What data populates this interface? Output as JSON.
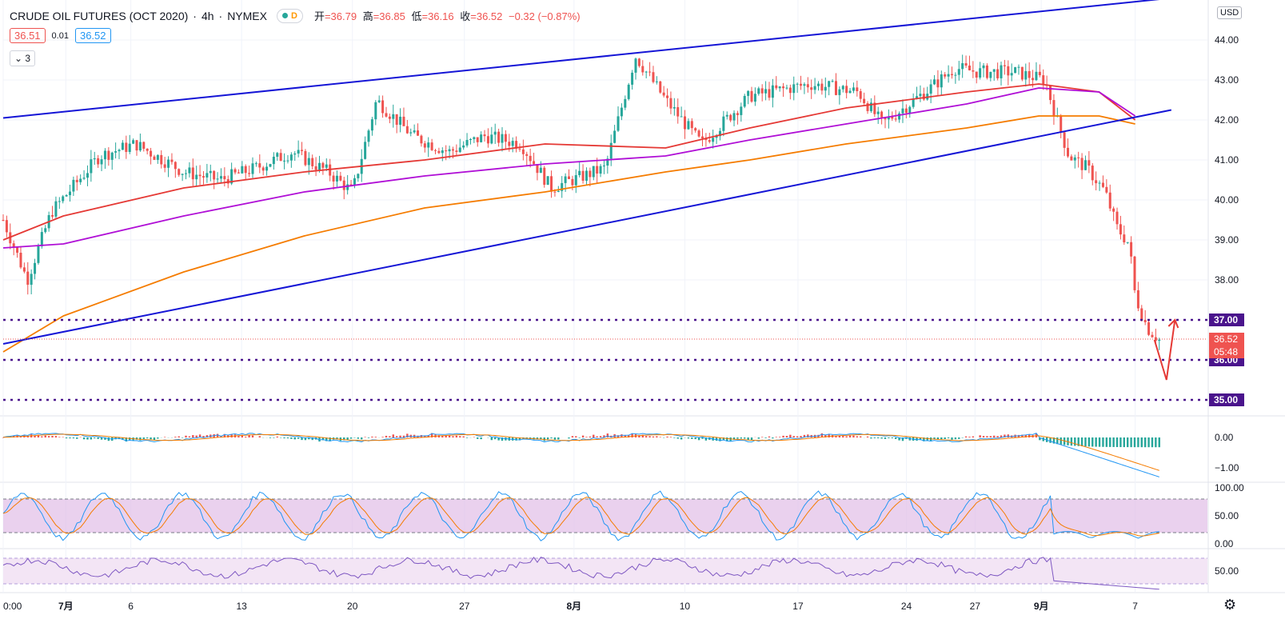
{
  "header": {
    "title": "CRUDE OIL FUTURES (OCT 2020)",
    "interval": "4h",
    "exchange": "NYMEX",
    "status_letter": "D",
    "ohlc": [
      {
        "k": "开",
        "v": "=36.79"
      },
      {
        "k": "高",
        "v": "=36.85"
      },
      {
        "k": "低",
        "v": "=36.16"
      },
      {
        "k": "收",
        "v": "=36.52"
      }
    ],
    "change": "−0.32 (−0.87%)"
  },
  "bidask": {
    "bid": "36.51",
    "spread": "0.01",
    "ask": "36.52"
  },
  "indicators_collapsed": "3",
  "currency": "USD",
  "colors": {
    "up": "#26a69a",
    "down": "#ef5350",
    "trend": "#1515d6",
    "level": "#4a148c",
    "ma_fast": "#e53935",
    "ma_mid": "#b00fd6",
    "ma_slow": "#f57c00"
  },
  "chart_data": {
    "type": "candlestick",
    "symbol": "CRUDE OIL FUTURES (OCT 2020)",
    "x_axis": {
      "ticks": [
        "0:00",
        "7月",
        "6",
        "13",
        "20",
        "27",
        "8月",
        "10",
        "17",
        "24",
        "27",
        "9月",
        "7"
      ]
    },
    "y_axis": {
      "ylim": [
        34.8,
        45.0
      ],
      "ticks": [
        "44.00",
        "43.00",
        "42.00",
        "41.00",
        "40.00",
        "39.00",
        "38.00"
      ]
    },
    "price_path": [
      [
        0,
        39.5
      ],
      [
        0.02,
        38.0
      ],
      [
        0.04,
        39.7
      ],
      [
        0.08,
        41.1
      ],
      [
        0.11,
        41.4
      ],
      [
        0.15,
        40.7
      ],
      [
        0.18,
        40.5
      ],
      [
        0.21,
        40.8
      ],
      [
        0.24,
        41.2
      ],
      [
        0.27,
        40.7
      ],
      [
        0.29,
        40.2
      ],
      [
        0.31,
        42.5
      ],
      [
        0.34,
        41.6
      ],
      [
        0.37,
        41.2
      ],
      [
        0.4,
        41.6
      ],
      [
        0.43,
        41.4
      ],
      [
        0.455,
        40.3
      ],
      [
        0.5,
        40.8
      ],
      [
        0.525,
        43.6
      ],
      [
        0.55,
        42.5
      ],
      [
        0.58,
        41.4
      ],
      [
        0.62,
        42.6
      ],
      [
        0.67,
        42.9
      ],
      [
        0.71,
        42.7
      ],
      [
        0.73,
        41.9
      ],
      [
        0.77,
        42.8
      ],
      [
        0.79,
        43.3
      ],
      [
        0.81,
        43.2
      ],
      [
        0.84,
        43.2
      ],
      [
        0.865,
        43.0
      ],
      [
        0.875,
        42.0
      ],
      [
        0.885,
        41.1
      ],
      [
        0.9,
        40.8
      ],
      [
        0.915,
        40.2
      ],
      [
        0.925,
        39.3
      ],
      [
        0.935,
        38.9
      ],
      [
        0.94,
        37.6
      ],
      [
        0.95,
        36.8
      ],
      [
        0.96,
        36.5
      ]
    ],
    "moving_averages": [
      {
        "name": "MA fast",
        "color": "#e53935",
        "points": [
          [
            0,
            39.0
          ],
          [
            0.05,
            39.6
          ],
          [
            0.15,
            40.3
          ],
          [
            0.25,
            40.7
          ],
          [
            0.35,
            41.0
          ],
          [
            0.45,
            41.4
          ],
          [
            0.55,
            41.3
          ],
          [
            0.62,
            41.8
          ],
          [
            0.7,
            42.3
          ],
          [
            0.8,
            42.7
          ],
          [
            0.86,
            42.9
          ],
          [
            0.91,
            42.7
          ],
          [
            0.94,
            42.0
          ]
        ]
      },
      {
        "name": "MA mid",
        "color": "#b00fd6",
        "points": [
          [
            0,
            38.8
          ],
          [
            0.05,
            38.9
          ],
          [
            0.15,
            39.6
          ],
          [
            0.25,
            40.2
          ],
          [
            0.35,
            40.6
          ],
          [
            0.45,
            40.9
          ],
          [
            0.55,
            41.1
          ],
          [
            0.62,
            41.5
          ],
          [
            0.7,
            41.9
          ],
          [
            0.8,
            42.4
          ],
          [
            0.86,
            42.8
          ],
          [
            0.91,
            42.7
          ],
          [
            0.94,
            42.1
          ]
        ]
      },
      {
        "name": "MA slow",
        "color": "#f57c00",
        "points": [
          [
            0,
            36.2
          ],
          [
            0.05,
            37.1
          ],
          [
            0.15,
            38.2
          ],
          [
            0.25,
            39.1
          ],
          [
            0.35,
            39.8
          ],
          [
            0.45,
            40.2
          ],
          [
            0.55,
            40.7
          ],
          [
            0.62,
            41.0
          ],
          [
            0.7,
            41.4
          ],
          [
            0.8,
            41.8
          ],
          [
            0.86,
            42.1
          ],
          [
            0.91,
            42.1
          ],
          [
            0.94,
            41.9
          ]
        ]
      }
    ],
    "trendlines": [
      {
        "name": "channel upper",
        "from": [
          0,
          42.05
        ],
        "to": [
          0.97,
          45.05
        ]
      },
      {
        "name": "channel lower",
        "from": [
          0,
          36.4
        ],
        "to": [
          0.97,
          42.25
        ]
      }
    ],
    "horizontal_levels": [
      {
        "price": 37.0,
        "label": "37.00"
      },
      {
        "price": 36.0,
        "label": "36.00"
      },
      {
        "price": 35.0,
        "label": "35.00"
      }
    ],
    "last_price": {
      "price": 36.52,
      "label": "36.52",
      "countdown": "05:48"
    },
    "projection_arrow": {
      "points": [
        [
          0.956,
          36.5
        ],
        [
          0.966,
          35.5
        ],
        [
          0.973,
          37.0
        ]
      ]
    },
    "panes": [
      {
        "name": "MACD",
        "ticks": [
          "0.00",
          "−1.00"
        ]
      },
      {
        "name": "Stochastic",
        "ticks": [
          "100.00",
          "50.00",
          "0.00"
        ],
        "bands": [
          20,
          80
        ]
      },
      {
        "name": "RSI",
        "ticks": [
          "50.00"
        ],
        "bands": [
          30,
          70
        ]
      }
    ],
    "grid": true
  }
}
